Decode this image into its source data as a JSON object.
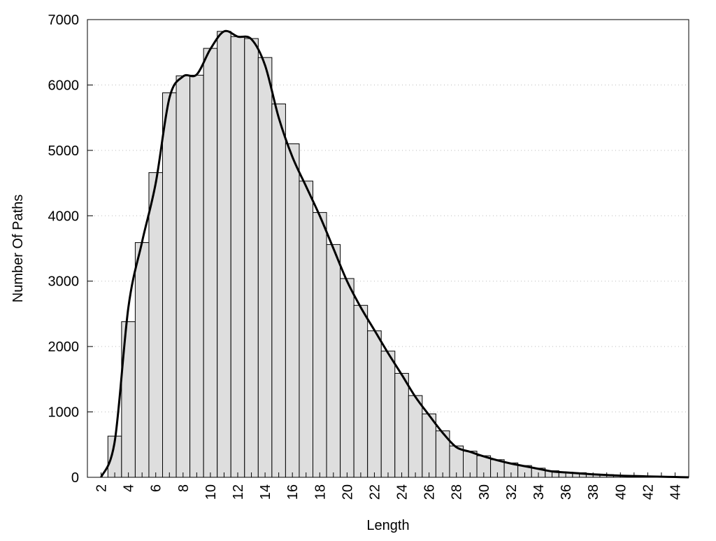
{
  "chart_data": {
    "type": "bar",
    "title": "",
    "xlabel": "Length",
    "ylabel": "Number Of Paths",
    "xlim": [
      1,
      45
    ],
    "ylim": [
      0,
      7000
    ],
    "grid": "horizontal dotted",
    "x_ticks": [
      2,
      4,
      6,
      8,
      10,
      12,
      14,
      16,
      18,
      20,
      22,
      24,
      26,
      28,
      30,
      32,
      34,
      36,
      38,
      40,
      42,
      44
    ],
    "y_ticks": [
      0,
      1000,
      2000,
      3000,
      4000,
      5000,
      6000,
      7000
    ],
    "bar_color": "#dedede",
    "edge_color": "#000000",
    "x": [
      3,
      4,
      5,
      6,
      7,
      8,
      9,
      10,
      11,
      12,
      13,
      14,
      15,
      16,
      17,
      18,
      19,
      20,
      21,
      22,
      23,
      24,
      25,
      26,
      27,
      28,
      29,
      30,
      31,
      32,
      33,
      34,
      35,
      36,
      37,
      38,
      39,
      40,
      41,
      42,
      43,
      44
    ],
    "values": [
      630,
      2380,
      3590,
      4660,
      5880,
      6140,
      6150,
      6560,
      6820,
      6740,
      6710,
      6420,
      5710,
      5100,
      4530,
      4050,
      3560,
      3040,
      2630,
      2240,
      1930,
      1590,
      1250,
      970,
      710,
      480,
      400,
      330,
      270,
      220,
      180,
      140,
      100,
      80,
      70,
      50,
      40,
      30,
      25,
      20,
      12,
      8
    ],
    "smooth_curve": {
      "type": "line",
      "color": "#000000",
      "x": [
        2,
        3,
        4,
        5,
        6,
        7,
        8,
        9,
        10,
        11,
        12,
        13,
        14,
        15,
        16,
        17,
        18,
        19,
        20,
        21,
        22,
        23,
        24,
        25,
        26,
        27,
        28,
        29,
        30,
        31,
        32,
        33,
        34,
        35,
        36,
        37,
        38,
        39,
        40,
        41,
        42,
        43,
        44,
        45
      ],
      "y": [
        0,
        550,
        2600,
        3600,
        4500,
        5800,
        6130,
        6160,
        6550,
        6820,
        6740,
        6700,
        6300,
        5500,
        4900,
        4450,
        4000,
        3500,
        3000,
        2600,
        2250,
        1900,
        1570,
        1230,
        950,
        680,
        460,
        390,
        320,
        260,
        210,
        170,
        130,
        90,
        75,
        60,
        45,
        35,
        25,
        20,
        14,
        9,
        5,
        0
      ]
    }
  }
}
